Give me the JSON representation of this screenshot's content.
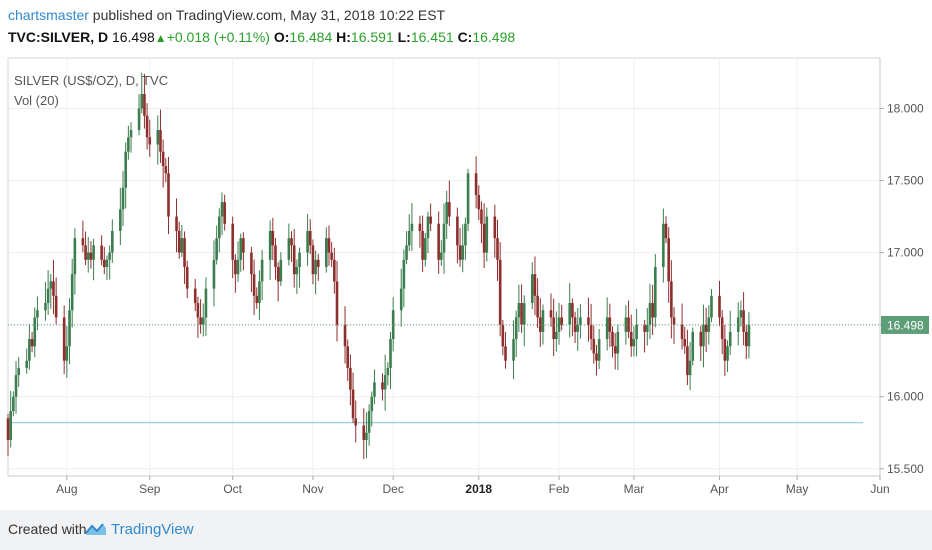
{
  "header": {
    "author": "chartsmaster",
    "published_text": " published on TradingView.com, May 31, 2018 10:22 EST",
    "symbol": "TVC:SILVER, D",
    "last": "16.498",
    "change": "+0.018 (+0.11%)",
    "open_label": "O:",
    "open": "16.484",
    "high_label": "H:",
    "high": "16.591",
    "low_label": "L:",
    "low": "16.451",
    "close_label": "C:",
    "close": "16.498"
  },
  "footer": {
    "created_with": "Created with",
    "brand": "TradingView"
  },
  "colors": {
    "up": "#3b7d4e",
    "down": "#8e2f2d",
    "price_line": "#5ea57b",
    "h_line": "#8ccbe6",
    "badge": "#5d9e79"
  },
  "chart_data": {
    "type": "candlestick",
    "legend_title": "SILVER (US$/OZ), D, TVC",
    "legend_indicator": "Vol (20)",
    "current_price_label": "16.498",
    "current_price": 16.498,
    "horizontal_line": 15.82,
    "ylim": [
      15.45,
      18.35
    ],
    "y_ticks": [
      {
        "value": 15.5,
        "label": "15.500"
      },
      {
        "value": 16.0,
        "label": "16.000"
      },
      {
        "value": 16.5,
        "label": "16.500"
      },
      {
        "value": 17.0,
        "label": "17.000"
      },
      {
        "value": 17.5,
        "label": "17.500"
      },
      {
        "value": 18.0,
        "label": "18.000"
      }
    ],
    "x_range": [
      "2017-07-10",
      "2018-06-01"
    ],
    "x_ticks": [
      {
        "date": "2017-08-01",
        "label": "Aug",
        "bold": false
      },
      {
        "date": "2017-09-01",
        "label": "Sep",
        "bold": false
      },
      {
        "date": "2017-10-02",
        "label": "Oct",
        "bold": false
      },
      {
        "date": "2017-11-01",
        "label": "Nov",
        "bold": false
      },
      {
        "date": "2017-12-01",
        "label": "Dec",
        "bold": false
      },
      {
        "date": "2018-01-02",
        "label": "2018",
        "bold": true
      },
      {
        "date": "2018-02-01",
        "label": "Feb",
        "bold": false
      },
      {
        "date": "2018-03-01",
        "label": "Mar",
        "bold": false
      },
      {
        "date": "2018-04-02",
        "label": "Apr",
        "bold": false
      },
      {
        "date": "2018-05-01",
        "label": "May",
        "bold": false
      },
      {
        "date": "2018-06-01",
        "label": "Jun",
        "bold": false
      }
    ],
    "closes": {
      "start": "2017-07-10",
      "first_open": 15.85,
      "values": [
        15.7,
        15.9,
        16.0,
        16.15,
        16.2,
        16.25,
        16.4,
        16.35,
        16.55,
        16.6,
        16.65,
        16.75,
        16.8,
        16.7,
        16.55,
        16.25,
        16.35,
        16.6,
        16.85,
        17.1,
        17.05,
        16.95,
        17.0,
        16.95,
        17.05,
        16.95,
        16.9,
        16.95,
        17.0,
        17.15,
        17.3,
        17.45,
        17.7,
        17.8,
        17.85,
        18.0,
        18.1,
        17.95,
        17.8,
        17.75,
        17.85,
        17.7,
        17.6,
        17.55,
        17.25,
        17.15,
        17.0,
        17.1,
        16.9,
        16.75,
        16.65,
        16.55,
        16.5,
        16.55,
        16.75,
        16.95,
        17.1,
        17.25,
        17.35,
        17.2,
        16.95,
        16.85,
        16.95,
        17.1,
        17.0,
        16.85,
        16.7,
        16.65,
        16.8,
        16.95,
        17.15,
        17.05,
        16.9,
        16.8,
        16.95,
        17.1,
        17.05,
        16.85,
        16.9,
        17.0,
        17.15,
        17.05,
        16.85,
        16.95,
        16.9,
        17.1,
        17.0,
        16.95,
        16.8,
        16.5,
        16.35,
        16.2,
        16.05,
        15.85,
        15.8,
        15.7,
        15.75,
        15.9,
        16.0,
        16.1,
        16.05,
        16.15,
        16.2,
        16.4,
        16.6,
        16.75,
        16.95,
        17.05,
        17.15,
        17.2,
        17.15,
        16.95,
        17.1,
        17.25,
        17.2,
        16.95,
        17.0,
        17.2,
        17.35,
        17.25,
        17.05,
        16.95,
        17.05,
        17.2,
        17.55,
        17.4,
        17.3,
        17.2,
        17.0,
        17.25,
        17.1,
        16.95,
        16.5,
        16.35,
        16.25,
        16.4,
        16.55,
        16.65,
        16.5,
        16.65,
        16.85,
        16.7,
        16.55,
        16.45,
        16.6,
        16.55,
        16.4,
        16.45,
        16.55,
        16.5,
        16.65,
        16.55,
        16.45,
        16.5,
        16.55,
        16.5,
        16.4,
        16.3,
        16.25,
        16.4,
        16.55,
        16.45,
        16.35,
        16.3,
        16.45,
        16.55,
        16.45,
        16.35,
        16.4,
        16.5,
        16.45,
        16.5,
        16.65,
        16.55,
        16.9,
        17.2,
        17.1,
        16.8,
        16.55,
        16.5,
        16.4,
        16.35,
        16.15,
        16.25,
        16.45,
        16.35,
        16.5,
        16.45,
        16.55,
        16.7,
        16.55,
        16.4,
        16.25,
        16.35,
        16.45,
        16.55,
        16.6,
        16.45,
        16.35,
        16.5
      ]
    }
  }
}
